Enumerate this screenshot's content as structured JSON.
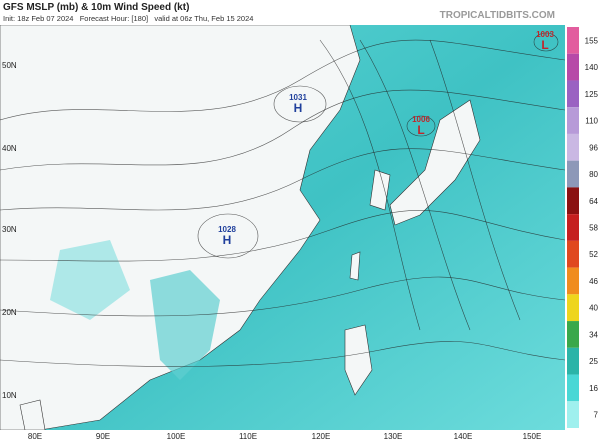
{
  "header": {
    "title": "GFS MSLP (mb) & 10m Wind Speed (kt)",
    "subtitle": "Init: 18z Feb 07 2024   Forecast Hour: [180]   valid at 06z Thu, Feb 15 2024",
    "watermark": "TROPICALTIDBITS.COM"
  },
  "pressure_centers": [
    {
      "kind": "H",
      "value": "1031",
      "color": "#1f3f9c"
    },
    {
      "kind": "H",
      "value": "1028",
      "color": "#1f3f9c"
    },
    {
      "kind": "L",
      "value": "1006",
      "color": "#c0262b"
    },
    {
      "kind": "L",
      "value": "1003",
      "color": "#c0262b"
    }
  ],
  "lat_labels": [
    "50N",
    "40N",
    "30N",
    "20N",
    "10N"
  ],
  "lon_labels": [
    "80E",
    "90E",
    "100E",
    "110E",
    "120E",
    "130E",
    "140E",
    "150E"
  ],
  "colorbar": {
    "ticks": [
      155,
      140,
      125,
      110,
      96,
      80,
      64,
      58,
      52,
      46,
      40,
      34,
      25,
      16,
      7
    ],
    "colors": [
      "#e25d9e",
      "#b74aa8",
      "#9a62c2",
      "#b79ad8",
      "#cab8e3",
      "#8d98b8",
      "#8a1111",
      "#c51f1f",
      "#e0481f",
      "#f08c1e",
      "#eed51d",
      "#3aa84b",
      "#2bb4a8",
      "#49d7d5",
      "#9ff0ee"
    ]
  }
}
